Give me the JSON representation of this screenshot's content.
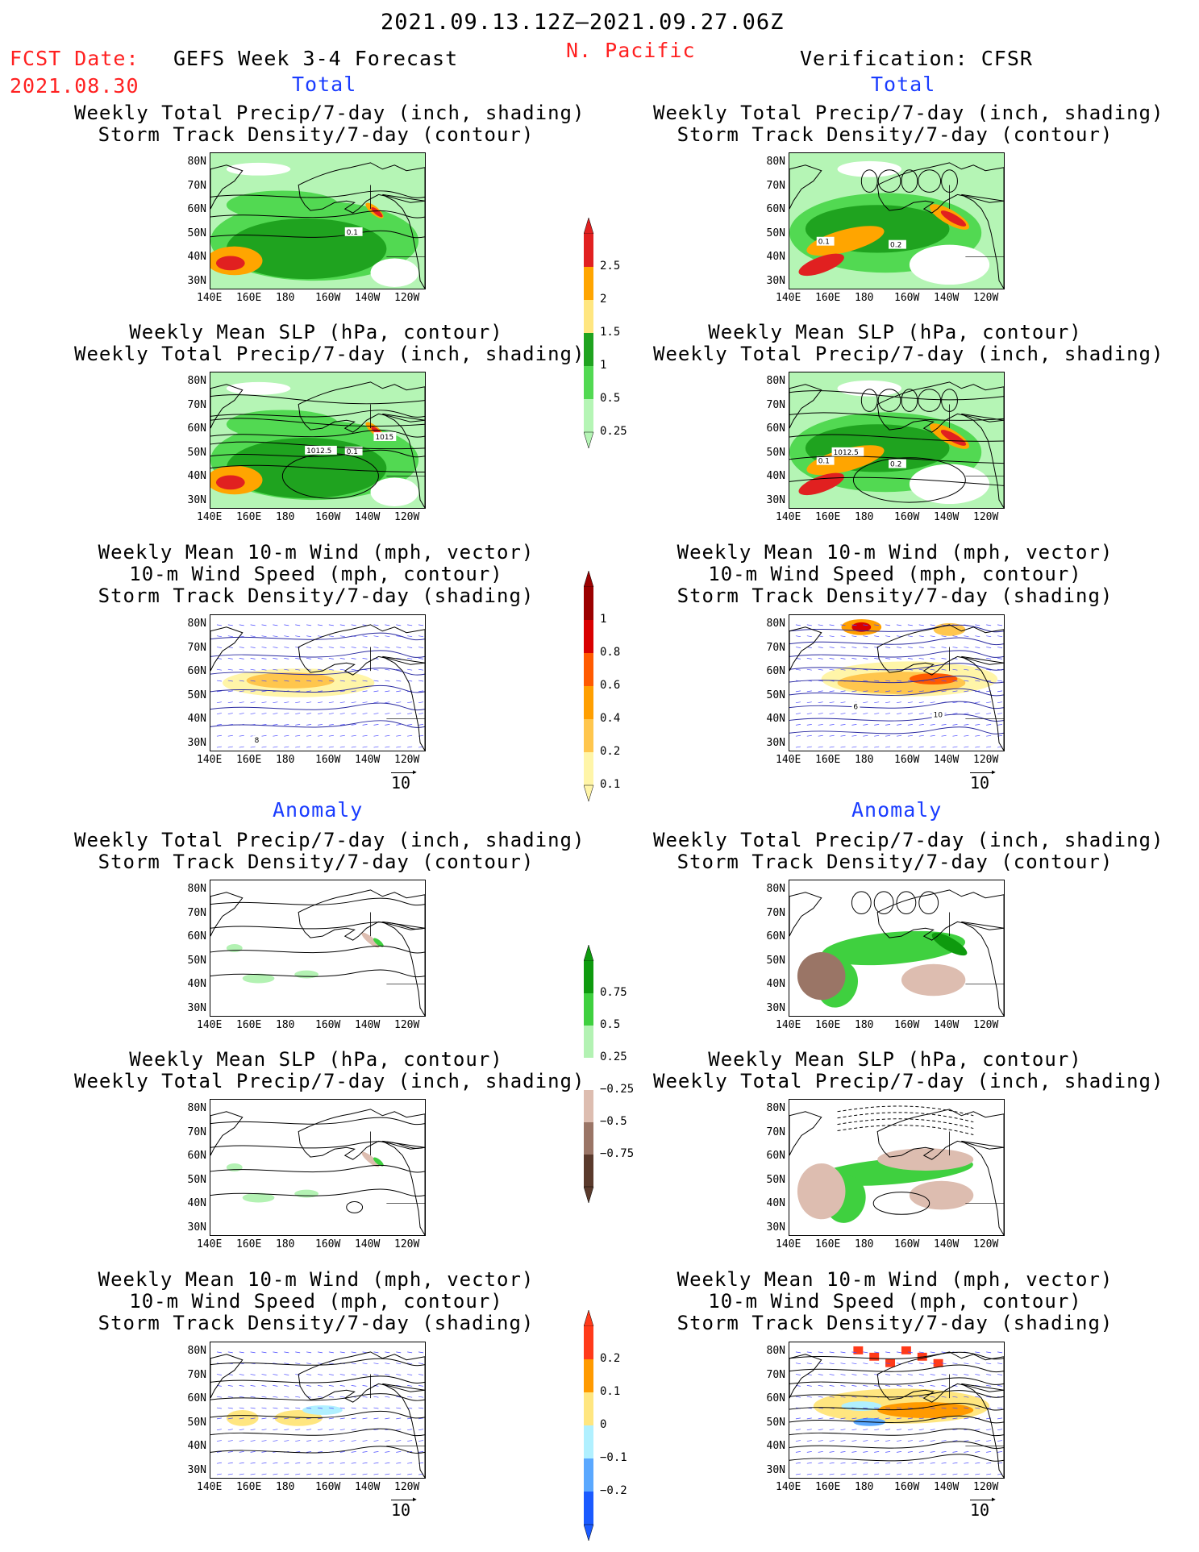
{
  "header": {
    "period": "2021.09.13.12Z–2021.09.27.06Z",
    "fcst_label": "FCST Date:",
    "fcst_date": "2021.08.30",
    "model": "GEFS Week 3-4 Forecast",
    "region": "N. Pacific",
    "verification": "Verification: CFSR"
  },
  "sections": {
    "total": "Total",
    "anomaly": "Anomaly"
  },
  "titles": {
    "precip_storm": [
      "Weekly Total Precip/7-day (inch, shading)",
      "Storm Track Density/7-day (contour)"
    ],
    "slp_precip": [
      "Weekly Mean SLP (hPa, contour)",
      "Weekly Total Precip/7-day (inch, shading)"
    ],
    "wind_storm": [
      "Weekly Mean 10-m Wind (mph, vector)",
      "10-m Wind Speed (mph, contour)",
      "Storm Track Density/7-day (shading)"
    ]
  },
  "axes": {
    "lat": [
      "80N",
      "70N",
      "60N",
      "50N",
      "40N",
      "30N"
    ],
    "lon": [
      "140E",
      "160E",
      "180",
      "160W",
      "140W",
      "120W"
    ]
  },
  "vector_ref": "10",
  "colorbars": {
    "precip_total": {
      "labels": [
        "2.5",
        "2",
        "1.5",
        "1",
        "0.5",
        "0.25"
      ],
      "colors": [
        "#e12020",
        "#ffa500",
        "#ffe680",
        "#1fa31f",
        "#52d952",
        "#b5f5b5"
      ]
    },
    "storm_total": {
      "labels": [
        "1",
        "0.8",
        "0.6",
        "0.4",
        "0.2",
        "0.1"
      ],
      "colors": [
        "#9b0000",
        "#d80000",
        "#ff5a00",
        "#ff9f00",
        "#ffc64d",
        "#fff5a8"
      ]
    },
    "precip_anom": {
      "labels": [
        "0.75",
        "0.5",
        "0.25",
        "−0.25",
        "−0.5",
        "−0.75"
      ],
      "colors": [
        "#0e9a0e",
        "#3fd03f",
        "#b3f2b3",
        "#ffffff",
        "#ddbdb0",
        "#9a7566",
        "#5a3a2c"
      ]
    },
    "storm_anom": {
      "labels": [
        "0.2",
        "0.1",
        "0",
        "−0.1",
        "−0.2"
      ],
      "colors": [
        "#ff3a1a",
        "#ff9a00",
        "#ffe680",
        "#b0f0ff",
        "#5aa8ff",
        "#1a5aff"
      ]
    }
  },
  "map_labels": {
    "p1": [
      "0.1"
    ],
    "p2": [
      "1015",
      "1012.5"
    ],
    "p3": [
      "8"
    ],
    "p4": [
      "0.1",
      "0.2"
    ],
    "p5": [
      "1012.5"
    ],
    "p6": [
      "6",
      "10"
    ]
  }
}
